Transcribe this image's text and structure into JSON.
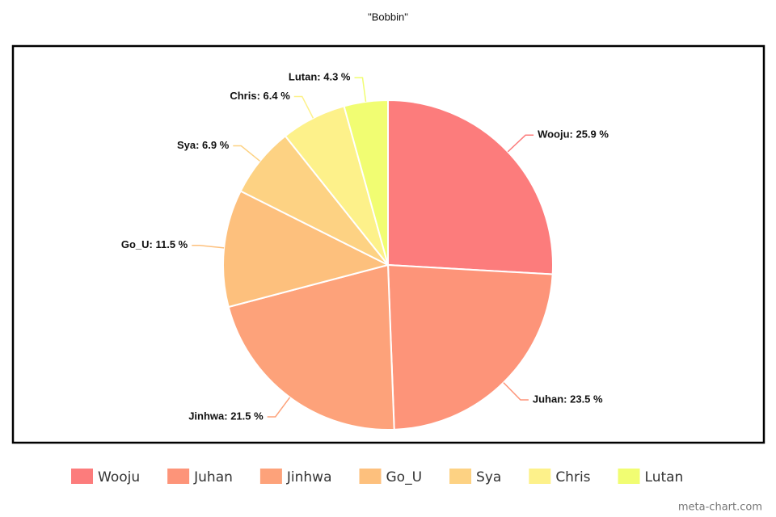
{
  "chart_data": {
    "type": "pie",
    "title": "\"Bobbin\"",
    "categories": [
      "Wooju",
      "Juhan",
      "Jinhwa",
      "Go_U",
      "Sya",
      "Chris",
      "Lutan"
    ],
    "values": [
      25.9,
      23.5,
      21.5,
      11.5,
      6.9,
      6.4,
      4.3
    ],
    "value_labels": [
      "Wooju: 25.9 %",
      "Juhan: 23.5 %",
      "Jinhwa: 21.5 %",
      "Go_U: 11.5 %",
      "Sya: 6.9 %",
      "Chris: 6.4 %",
      "Lutan: 4.3 %"
    ],
    "colors": [
      "#fc7c7c",
      "#fd9479",
      "#fda27a",
      "#fdc07d",
      "#fdd283",
      "#fdf18a",
      "#f1fd72"
    ],
    "legend": "bottom",
    "watermark": "meta-chart.com"
  }
}
